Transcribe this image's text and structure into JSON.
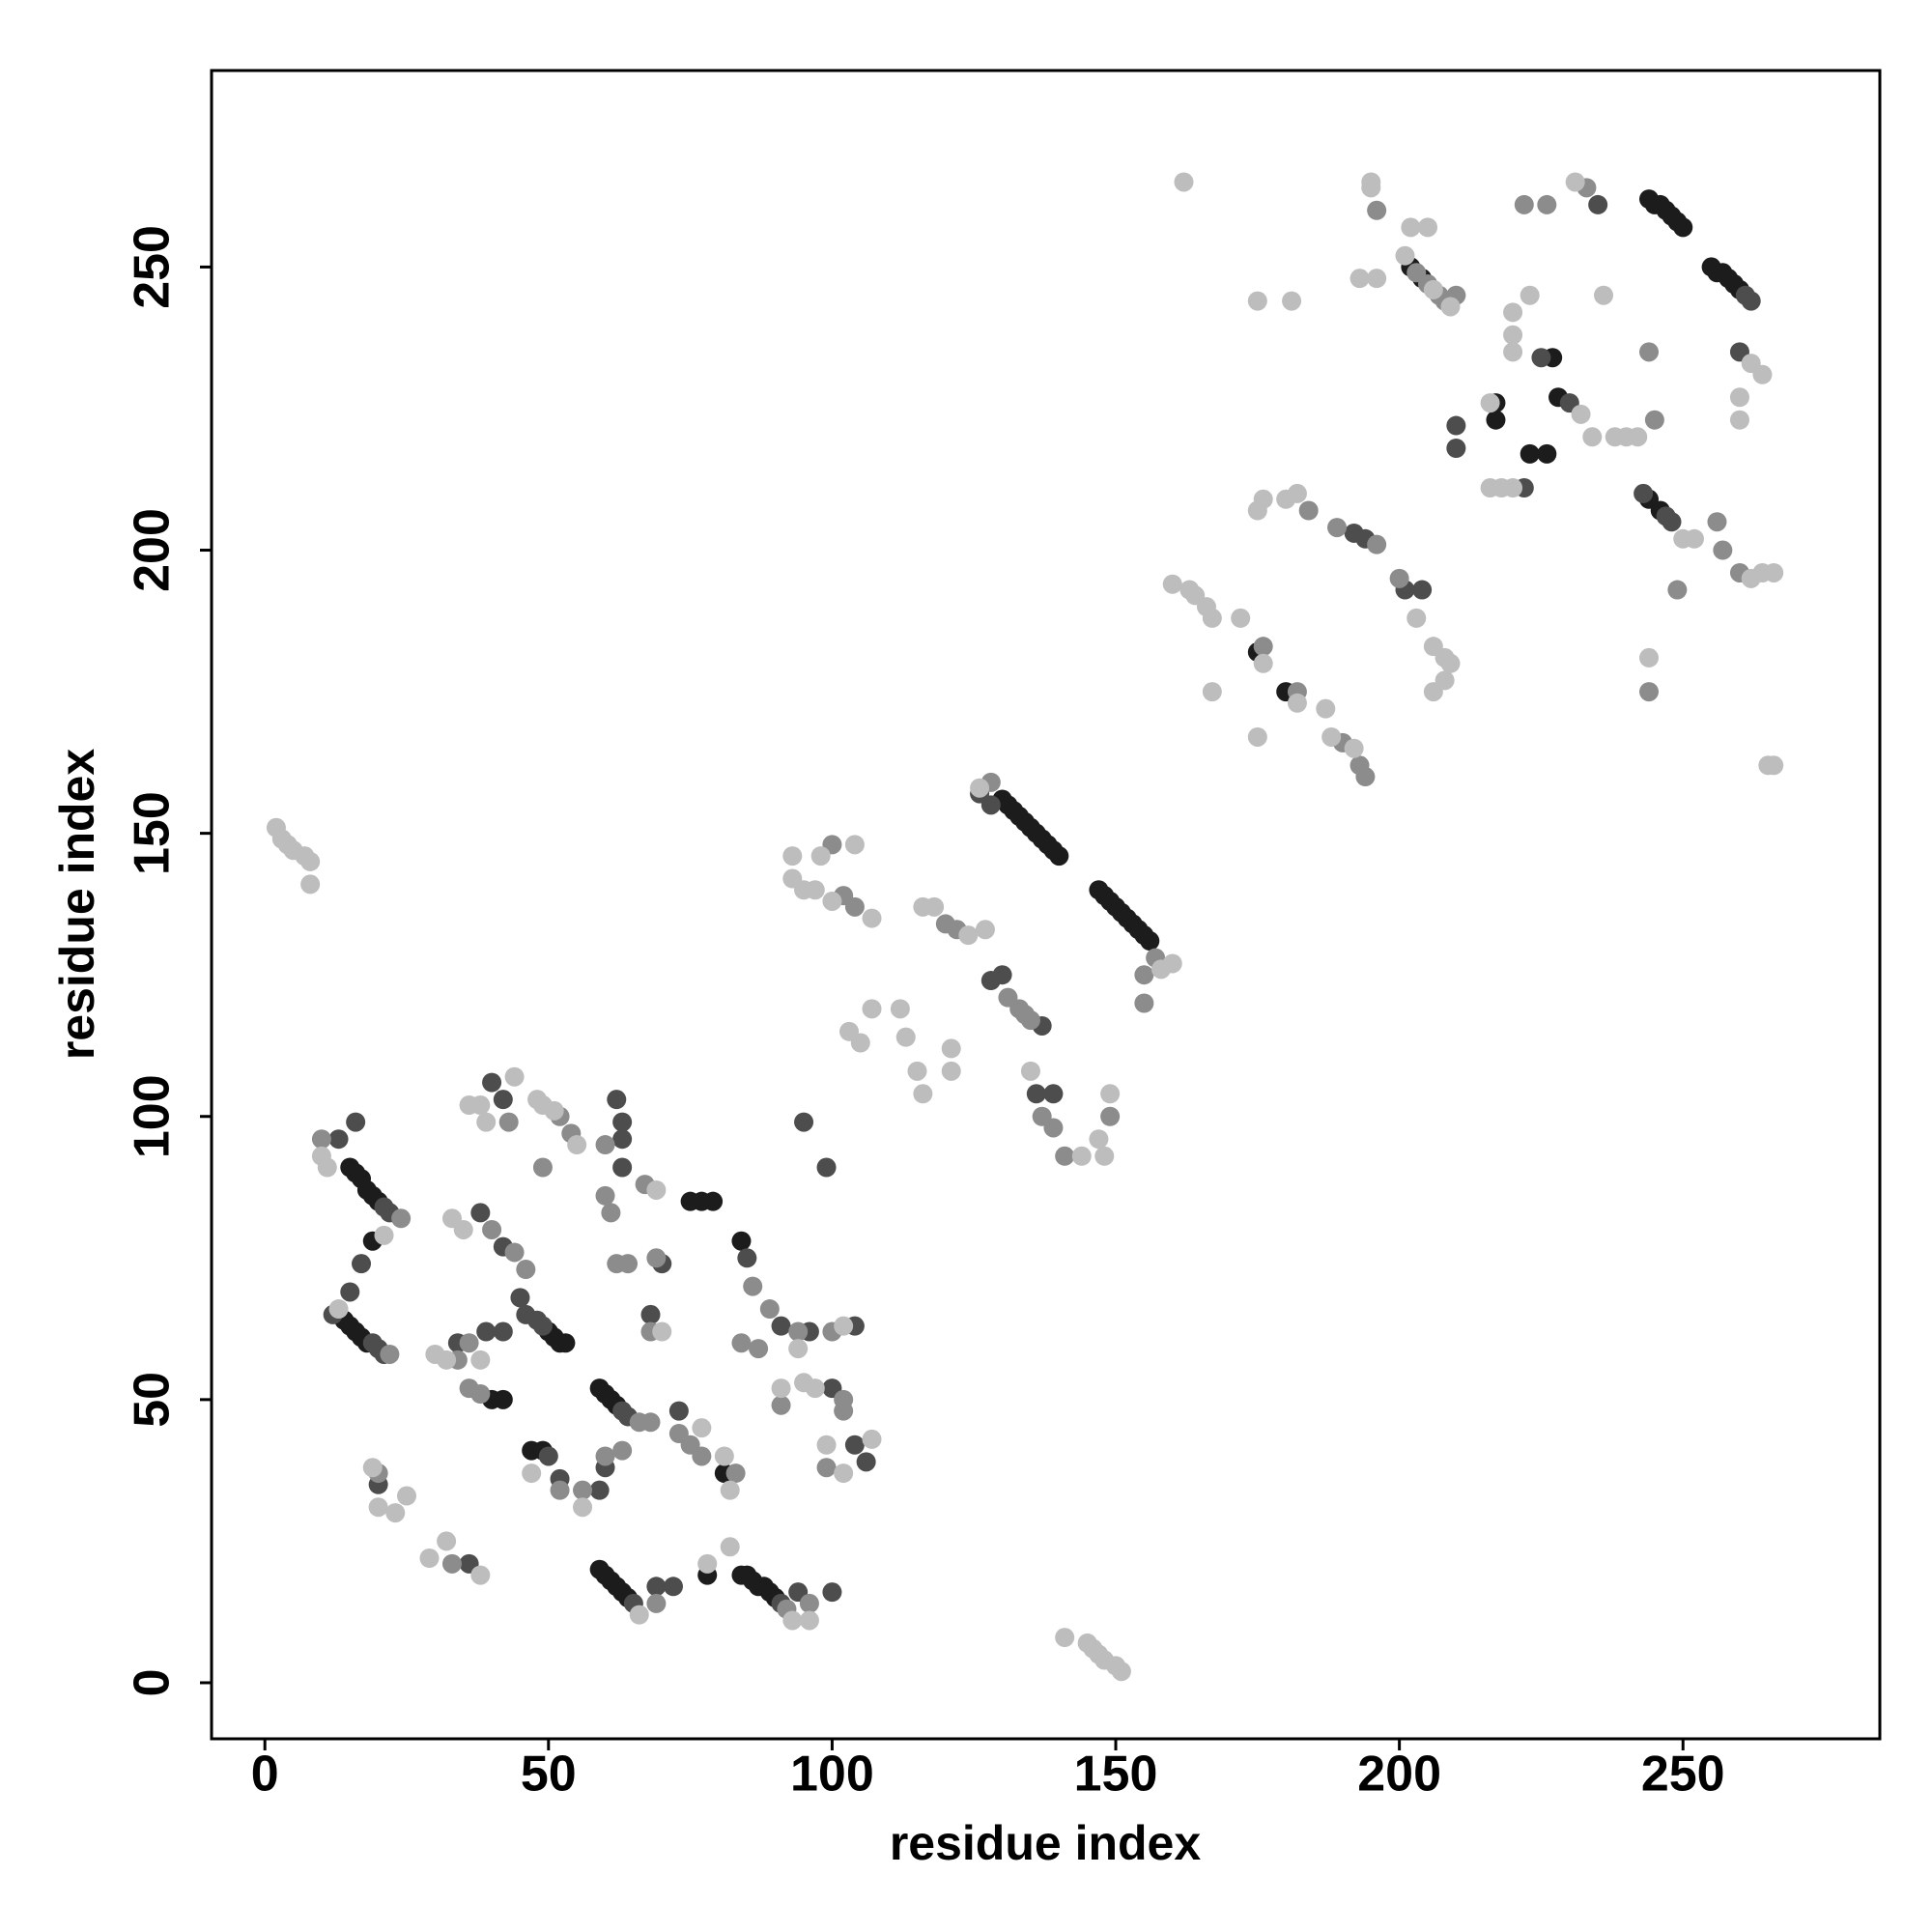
{
  "chart_data": {
    "type": "scatter",
    "x_label": "residue index",
    "y_label": "residue index",
    "xlim": [
      -9.4,
      284.7
    ],
    "ylim": [
      -9.9,
      284.7
    ],
    "xticks": [
      0,
      50,
      100,
      150,
      200,
      250
    ],
    "yticks": [
      0,
      50,
      100,
      150,
      200,
      250
    ],
    "series": [
      {
        "color": "#1c1c1c",
        "x": [
          244,
          245,
          246,
          247,
          248,
          249,
          250,
          255,
          256,
          257,
          258,
          259,
          260,
          202,
          204,
          227,
          217,
          217,
          223,
          226,
          228,
          244,
          246,
          175,
          180,
          130,
          131,
          132,
          133,
          134,
          135,
          136,
          137,
          138,
          139,
          140,
          147,
          148,
          149,
          150,
          151,
          152,
          153,
          154,
          155,
          156,
          15,
          16,
          17,
          18,
          19,
          20,
          19,
          14,
          15,
          16,
          17,
          18,
          40,
          42,
          50,
          51,
          52,
          53,
          59,
          60,
          61,
          62,
          75,
          77,
          79,
          84,
          81,
          78,
          59,
          60,
          61,
          62,
          63,
          64,
          84,
          85,
          86,
          87,
          88,
          89,
          90,
          47,
          49
        ],
        "values": [
          262,
          261,
          261,
          260,
          259,
          258,
          257,
          250,
          249,
          249,
          248,
          247,
          246,
          250,
          248,
          234,
          226,
          223,
          217,
          217,
          227,
          209,
          207,
          182,
          175,
          156,
          155,
          154,
          153,
          152,
          151,
          150,
          149,
          148,
          147,
          146,
          140,
          139,
          138,
          137,
          136,
          135,
          134,
          133,
          132,
          131,
          91,
          90,
          89,
          87,
          86,
          85,
          78,
          64,
          63,
          62,
          61,
          60,
          50,
          50,
          62,
          61,
          60,
          60,
          52,
          51,
          50,
          49,
          85,
          85,
          85,
          78,
          37,
          19,
          20,
          19,
          18,
          17,
          16,
          15,
          19,
          19,
          18,
          17,
          17,
          16,
          15,
          41,
          41
        ]
      },
      {
        "color": "#4d4d4d",
        "x": [
          243,
          247,
          248,
          261,
          262,
          225,
          235,
          230,
          210,
          210,
          222,
          201,
          204,
          192,
          194,
          260,
          126,
          128,
          128,
          130,
          136,
          139,
          95,
          99,
          137,
          13,
          16,
          21,
          22,
          17,
          12,
          19,
          20,
          21,
          15,
          34,
          38,
          42,
          42,
          39,
          40,
          42,
          45,
          46,
          48,
          49,
          62,
          63,
          63,
          63,
          70,
          68,
          85,
          91,
          63,
          64,
          60,
          59,
          50,
          52,
          73,
          65,
          69,
          72,
          91,
          94,
          100,
          36,
          20,
          104,
          106,
          96,
          104,
          100
        ],
        "values": [
          210,
          206,
          205,
          245,
          244,
          234,
          261,
          226,
          222,
          218,
          211,
          193,
          193,
          203,
          202,
          235,
          157,
          155,
          124,
          125,
          104,
          104,
          99,
          91,
          116,
          96,
          99,
          84,
          83,
          74,
          65,
          60,
          59,
          58,
          69,
          60,
          83,
          77,
          62,
          62,
          106,
          103,
          68,
          65,
          64,
          63,
          103,
          99,
          96,
          91,
          74,
          65,
          75,
          63,
          48,
          47,
          38,
          34,
          40,
          36,
          48,
          14,
          17,
          17,
          14,
          16,
          16,
          21,
          35,
          42,
          39,
          62,
          63,
          52
        ]
      },
      {
        "color": "#8c8c8c",
        "x": [
          196,
          233,
          222,
          226,
          244,
          244,
          249,
          256,
          257,
          260,
          245,
          184,
          189,
          196,
          200,
          176,
          182,
          190,
          193,
          194,
          210,
          207,
          203,
          205,
          208,
          134,
          135,
          131,
          133,
          157,
          155,
          155,
          120,
          122,
          128,
          149,
          137,
          139,
          141,
          104,
          100,
          102,
          10,
          24,
          22,
          20,
          34,
          36,
          40,
          44,
          46,
          38,
          36,
          43,
          52,
          54,
          49,
          60,
          60,
          61,
          67,
          62,
          64,
          69,
          68,
          86,
          89,
          87,
          84,
          63,
          60,
          56,
          66,
          68,
          52,
          73,
          75,
          77,
          83,
          69,
          96,
          92,
          33,
          102,
          99,
          102,
          94,
          100,
          91
        ],
        "values": [
          260,
          264,
          261,
          261,
          235,
          175,
          193,
          205,
          200,
          196,
          223,
          207,
          204,
          201,
          195,
          183,
          175,
          166,
          162,
          160,
          245,
          245,
          249,
          247,
          244,
          118,
          117,
          121,
          119,
          128,
          125,
          120,
          134,
          133,
          159,
          100,
          100,
          98,
          93,
          137,
          148,
          139,
          96,
          82,
          58,
          37,
          57,
          60,
          80,
          76,
          73,
          51,
          52,
          99,
          100,
          97,
          91,
          95,
          86,
          83,
          88,
          74,
          74,
          75,
          62,
          70,
          66,
          59,
          60,
          41,
          40,
          34,
          46,
          46,
          34,
          44,
          42,
          40,
          37,
          14,
          14,
          13,
          21,
          48,
          38,
          50,
          62,
          62,
          49
        ]
      },
      {
        "color": "#bdbdbd",
        "x": [
          162,
          195,
          195,
          193,
          196,
          202,
          205,
          201,
          206,
          209,
          175,
          181,
          220,
          220,
          220,
          223,
          231,
          236,
          232,
          234,
          238,
          240,
          242,
          216,
          216,
          218,
          220,
          244,
          250,
          252,
          262,
          264,
          266,
          260,
          260,
          262,
          264,
          265,
          266,
          176,
          180,
          182,
          175,
          203,
          206,
          208,
          209,
          208,
          206,
          160,
          163,
          164,
          166,
          167,
          172,
          176,
          167,
          182,
          175,
          187,
          188,
          192,
          126,
          158,
          160,
          116,
          118,
          124,
          127,
          93,
          93,
          95,
          97,
          98,
          100,
          104,
          107,
          103,
          105,
          107,
          112,
          113,
          115,
          116,
          121,
          121,
          144,
          147,
          148,
          149,
          135,
          141,
          145,
          146,
          147,
          148,
          150,
          151,
          2,
          3,
          4,
          5,
          7,
          8,
          8,
          10,
          11,
          21,
          13,
          19,
          20,
          23,
          25,
          29,
          32,
          38,
          30,
          32,
          38,
          33,
          35,
          38,
          44,
          39,
          36,
          48,
          49,
          51,
          55,
          69,
          70,
          56,
          47,
          77,
          81,
          82,
          66,
          96,
          93,
          82,
          78,
          95,
          97,
          99,
          102,
          107,
          94,
          91,
          102
        ],
        "values": [
          265,
          265,
          264,
          248,
          248,
          257,
          257,
          252,
          246,
          243,
          244,
          244,
          242,
          238,
          235,
          245,
          265,
          245,
          224,
          220,
          220,
          220,
          220,
          226,
          211,
          211,
          211,
          181,
          202,
          202,
          195,
          196,
          196,
          227,
          223,
          233,
          231,
          162,
          162,
          209,
          209,
          210,
          207,
          188,
          183,
          181,
          180,
          177,
          175,
          194,
          193,
          192,
          190,
          188,
          188,
          180,
          175,
          173,
          167,
          172,
          167,
          165,
          158,
          126,
          127,
          137,
          137,
          132,
          133,
          146,
          142,
          140,
          140,
          146,
          138,
          148,
          135,
          115,
          113,
          119,
          119,
          114,
          108,
          104,
          112,
          108,
          93,
          96,
          93,
          104,
          108,
          8,
          7,
          6,
          5,
          4,
          3,
          2,
          151,
          149,
          148,
          147,
          146,
          145,
          141,
          93,
          91,
          79,
          66,
          38,
          31,
          30,
          33,
          22,
          25,
          19,
          58,
          57,
          57,
          82,
          80,
          102,
          107,
          99,
          102,
          103,
          102,
          101,
          95,
          87,
          62,
          31,
          37,
          45,
          40,
          34,
          12,
          11,
          11,
          24,
          21,
          53,
          52,
          42,
          37,
          43,
          59,
          52,
          63
        ]
      }
    ]
  }
}
